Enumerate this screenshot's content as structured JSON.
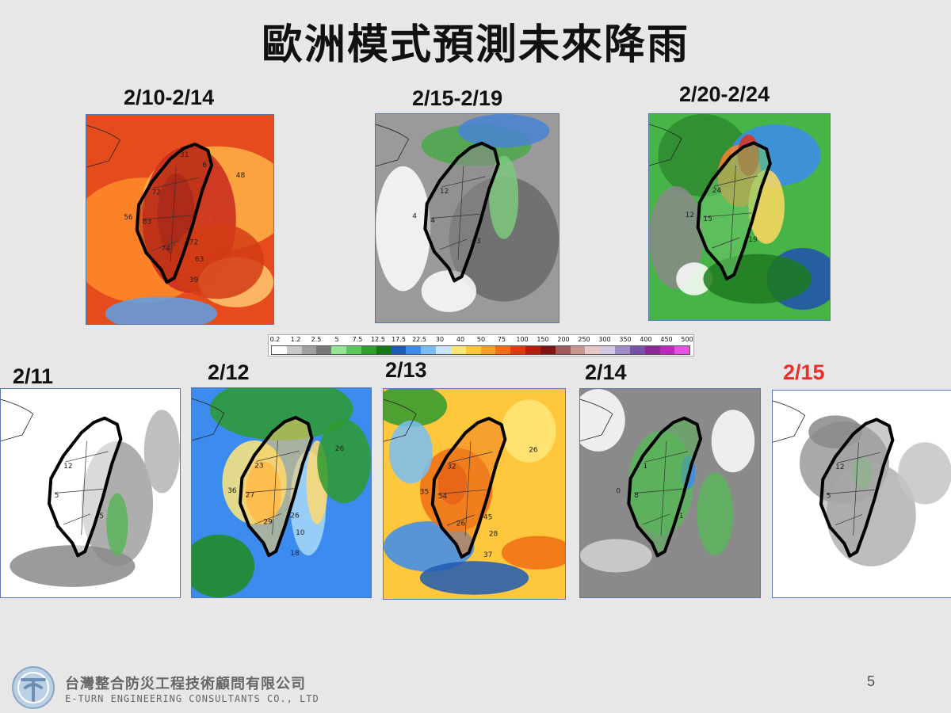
{
  "title": "歐洲模式預測未來降雨",
  "periods": [
    {
      "label": "2/10-2/14",
      "values": [
        "72",
        "83",
        "72",
        "56",
        "74",
        "63",
        "39",
        "48",
        "31",
        "6"
      ]
    },
    {
      "label": "2/15-2/19",
      "values": [
        "12",
        "4",
        "3",
        "4"
      ]
    },
    {
      "label": "2/20-2/24",
      "values": [
        "24",
        "15",
        "19",
        "12"
      ]
    }
  ],
  "days": [
    {
      "label": "2/11",
      "color": "#111111",
      "values": [
        "12",
        "5",
        "5"
      ]
    },
    {
      "label": "2/12",
      "color": "#111111",
      "values": [
        "23",
        "27",
        "26",
        "36",
        "29",
        "10",
        "18",
        "26"
      ]
    },
    {
      "label": "2/13",
      "color": "#111111",
      "values": [
        "32",
        "54",
        "45",
        "35",
        "26",
        "28",
        "37",
        "26"
      ]
    },
    {
      "label": "2/14",
      "color": "#111111",
      "values": [
        "1",
        "8",
        "1",
        "0"
      ]
    },
    {
      "label": "2/15",
      "color": "#e8312a",
      "values": [
        "12",
        "5"
      ]
    }
  ],
  "color_scale": {
    "ticks": [
      "0.2",
      "1.2",
      "2.5",
      "5",
      "7.5",
      "12.5",
      "17.5",
      "22.5",
      "30",
      "40",
      "50",
      "75",
      "100",
      "150",
      "200",
      "250",
      "300",
      "350",
      "400",
      "450",
      "500"
    ],
    "colors": [
      "#ffffff",
      "#c8c8c8",
      "#a0a0a0",
      "#787878",
      "#96e696",
      "#5ac85a",
      "#2ea02e",
      "#147814",
      "#1e5ab4",
      "#3c8cf0",
      "#78bef5",
      "#c8e6ff",
      "#ffe678",
      "#ffc83c",
      "#ffa028",
      "#f06e14",
      "#dc3c0a",
      "#b41e0a",
      "#821414",
      "#a05a5a",
      "#c8968c",
      "#e6c8c8",
      "#d2c8e6",
      "#a08cc8",
      "#7850aa",
      "#8c2896",
      "#be28be",
      "#e650e6"
    ]
  },
  "company_zh": "台灣整合防災工程技術顧問有限公司",
  "company_en": "E-TURN ENGINEERING CONSULTANTS CO., LTD",
  "page_number": "5"
}
